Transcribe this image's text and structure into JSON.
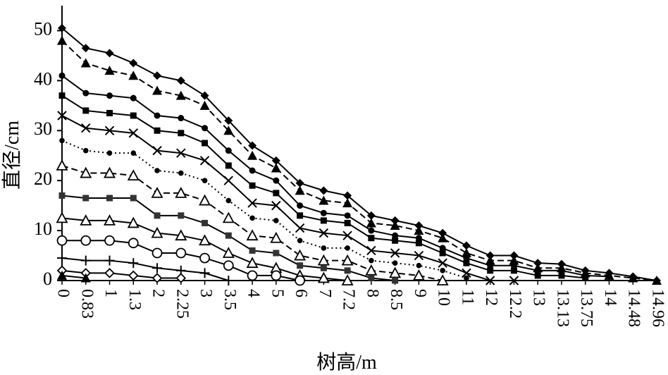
{
  "chart_data": {
    "type": "line",
    "title": "",
    "xlabel": "树高/m",
    "ylabel": "直径/cm",
    "ylim": [
      0,
      55
    ],
    "yticks": [
      0,
      10,
      20,
      30,
      40,
      50
    ],
    "grid": false,
    "legend": "none",
    "categories": [
      "0",
      "0.83",
      "1",
      "1.3",
      "2",
      "2.25",
      "3",
      "3.5",
      "4",
      "5",
      "6",
      "7",
      "7.2",
      "8",
      "8.5",
      "9",
      "10",
      "11",
      "12",
      "12.2",
      "13",
      "13.13",
      "13.75",
      "14",
      "14.48",
      "14.96"
    ],
    "series": [
      {
        "marker": "diamond-filled",
        "line": "solid",
        "values": [
          50.5,
          46.5,
          45.5,
          43.5,
          41,
          40,
          37,
          32,
          27,
          24,
          19.5,
          18,
          17,
          13,
          12,
          11,
          9.5,
          7,
          5,
          5,
          3.5,
          3.3,
          2,
          1.5,
          0.8,
          0
        ]
      },
      {
        "marker": "triangle-filled",
        "line": "dashed",
        "values": [
          48,
          43.5,
          42,
          41,
          38,
          37,
          35,
          30,
          25,
          22.5,
          18,
          16,
          15.5,
          11.5,
          11,
          10,
          8.5,
          5.5,
          4,
          4,
          2.5,
          2.5,
          1.5,
          1,
          0.5,
          0
        ]
      },
      {
        "marker": "circle-filled",
        "line": "solid",
        "values": [
          41,
          37.5,
          37,
          36.5,
          33,
          32.5,
          30.5,
          26,
          22,
          20,
          15,
          13.5,
          13,
          10,
          9,
          8.5,
          6.5,
          4.5,
          3,
          3,
          2,
          2,
          1,
          0.8,
          null,
          null
        ]
      },
      {
        "marker": "square-filled",
        "line": "solid",
        "values": [
          37,
          34,
          33.5,
          33,
          30,
          29.5,
          27.5,
          23,
          19,
          17.5,
          13,
          12,
          11.5,
          8.5,
          8,
          7.5,
          5.5,
          3.5,
          2,
          2,
          1,
          1,
          0.5,
          null,
          null,
          null
        ]
      },
      {
        "marker": "x",
        "line": "solid",
        "values": [
          33,
          30.5,
          30,
          29.5,
          26,
          25.5,
          24,
          20,
          15.5,
          15,
          10.5,
          9.5,
          9,
          6,
          5.5,
          5,
          3.5,
          1.5,
          0,
          0,
          null,
          null,
          null,
          null,
          null,
          null
        ]
      },
      {
        "marker": "circle-filled-small",
        "line": "dotted",
        "values": [
          28,
          26,
          25.5,
          25.5,
          22,
          21.5,
          20,
          16,
          12.5,
          12,
          8,
          6.5,
          6.5,
          4,
          3.5,
          3,
          2,
          0.5,
          null,
          null,
          null,
          null,
          null,
          null,
          null,
          null
        ]
      },
      {
        "marker": "triangle-open",
        "line": "dashed",
        "values": [
          23,
          21.5,
          21.5,
          21,
          17.5,
          17.5,
          16,
          12.5,
          9,
          8.5,
          5,
          4,
          4,
          2,
          1.5,
          1,
          0,
          null,
          null,
          null,
          null,
          null,
          null,
          null,
          null,
          null
        ]
      },
      {
        "marker": "square-filled-gray",
        "line": "solid",
        "values": [
          17,
          16.5,
          16.5,
          16.5,
          13,
          13,
          11.5,
          9,
          6,
          5.5,
          3,
          2.5,
          2,
          0.5,
          0,
          null,
          null,
          null,
          null,
          null,
          null,
          null,
          null,
          null,
          null,
          null
        ]
      },
      {
        "marker": "triangle-open",
        "line": "solid",
        "values": [
          12.5,
          12,
          12,
          11.5,
          9.5,
          9,
          8,
          5.5,
          3.5,
          2.5,
          1,
          0.5,
          0,
          null,
          null,
          null,
          null,
          null,
          null,
          null,
          null,
          null,
          null,
          null,
          null,
          null
        ]
      },
      {
        "marker": "circle-open",
        "line": "solid",
        "values": [
          8,
          8,
          8,
          7.5,
          5.5,
          5.5,
          4.5,
          3,
          1,
          1,
          0,
          null,
          null,
          null,
          null,
          null,
          null,
          null,
          null,
          null,
          null,
          null,
          null,
          null,
          null,
          null
        ]
      },
      {
        "marker": "plus",
        "line": "solid",
        "values": [
          4.5,
          4,
          4,
          3.5,
          2.5,
          2,
          1.5,
          0,
          null,
          null,
          null,
          null,
          null,
          null,
          null,
          null,
          null,
          null,
          null,
          null,
          null,
          null,
          null,
          null,
          null,
          null
        ]
      },
      {
        "marker": "diamond-open",
        "line": "solid",
        "values": [
          2,
          1.5,
          1.5,
          1,
          0.5,
          0.5,
          null,
          null,
          null,
          null,
          null,
          null,
          null,
          null,
          null,
          null,
          null,
          null,
          null,
          null,
          null,
          null,
          null,
          null,
          null,
          null
        ]
      },
      {
        "marker": "triangle-filled",
        "line": "solid",
        "values": [
          1,
          0.5,
          null,
          null,
          null,
          null,
          null,
          null,
          null,
          null,
          null,
          null,
          null,
          null,
          null,
          null,
          null,
          null,
          null,
          null,
          null,
          null,
          null,
          null,
          null,
          null
        ]
      }
    ]
  }
}
